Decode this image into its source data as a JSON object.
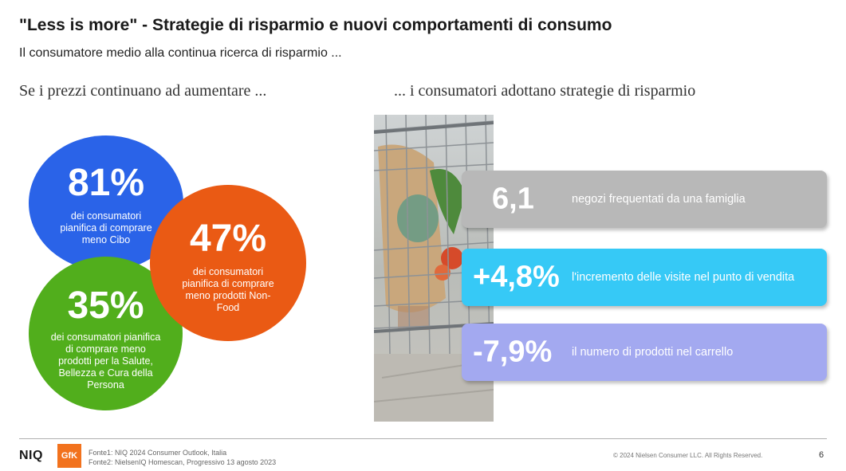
{
  "title": "\"Less is more\" - Strategie di risparmio e nuovi comportamenti di consumo",
  "subtitle": "Il consumatore medio alla continua ricerca di risparmio ...",
  "left_heading": "Se i prezzi continuano ad aumentare ...",
  "right_heading": "... i consumatori adottano strategie di risparmio",
  "circles": [
    {
      "pct": "81%",
      "desc": "dei consumatori pianifica di comprare meno Cibo",
      "color": "#2a63e8"
    },
    {
      "pct": "47%",
      "desc": "dei consumatori pianifica di comprare meno prodotti Non-Food",
      "color": "#ea5a14"
    },
    {
      "pct": "35%",
      "desc": "dei consumatori pianifica di comprare meno prodotti per la Salute, Bellezza e Cura della Persona",
      "color": "#51ae1c"
    }
  ],
  "cards": [
    {
      "value": "6,1",
      "label": "negozi frequentati da una famiglia",
      "color": "#b8b8b8"
    },
    {
      "value": "+4,8%",
      "label": "l'incremento delle visite nel punto di vendita",
      "color": "#36c9f6"
    },
    {
      "value": "-7,9%",
      "label": "il numero di prodotti nel carrello",
      "color": "#a3a9f0"
    }
  ],
  "footer": {
    "logo_niq": "NIQ",
    "logo_gfk": "GfK",
    "source1": "Fonte1: NIQ 2024 Consumer Outlook, Italia",
    "source2": "Fonte2: NielsenIQ Homescan,  Progressivo 13 agosto 2023",
    "copyright": "© 2024 Nielsen Consumer LLC. All Rights Reserved.",
    "page": "6"
  }
}
